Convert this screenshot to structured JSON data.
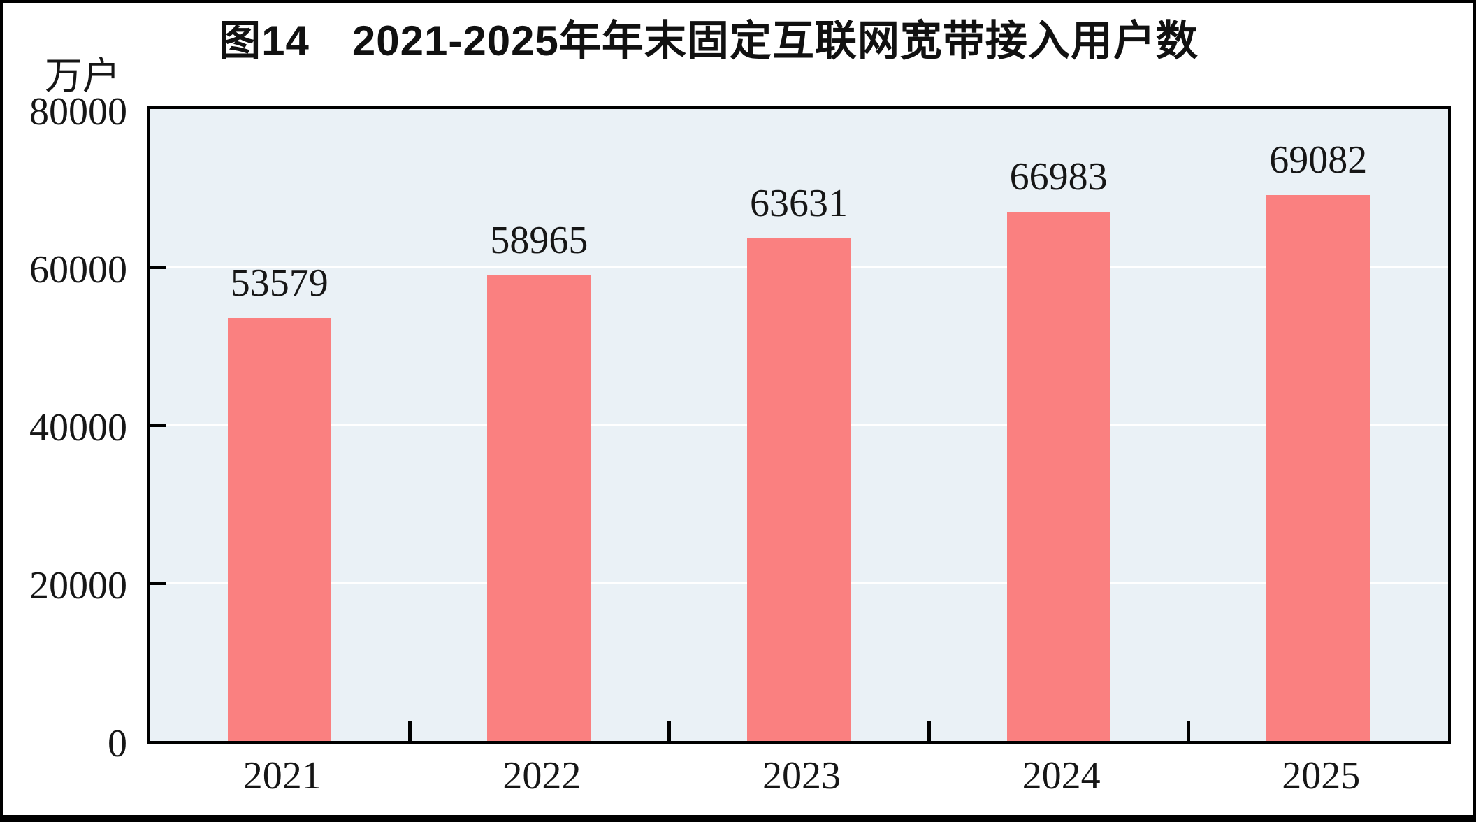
{
  "chart_data": {
    "type": "bar",
    "title": "图14　2021-2025年年末固定互联网宽带接入用户数",
    "unit_label": "万户",
    "categories": [
      "2021",
      "2022",
      "2023",
      "2024",
      "2025"
    ],
    "values": [
      53579,
      58965,
      63631,
      66983,
      69082
    ],
    "value_labels": [
      "53579",
      "58965",
      "63631",
      "66983",
      "69082"
    ],
    "ylim": [
      0,
      80000
    ],
    "yticks": [
      0,
      20000,
      40000,
      60000,
      80000
    ],
    "ytick_labels": [
      "0",
      "20000",
      "40000",
      "60000",
      "80000"
    ],
    "grid": "horizontal",
    "gridlines_at": [
      20000,
      40000,
      60000
    ],
    "legend": "none",
    "colors": {
      "bar": "#FA8080",
      "plot_background": "#EAF1F6",
      "gridline": "#FFFFFF",
      "axis": "#000000",
      "text": "#161616"
    }
  }
}
